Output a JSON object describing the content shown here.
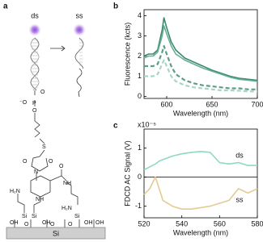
{
  "panel_a": {
    "label": "a",
    "ds": "ds",
    "ss": "ss",
    "chem_labels": [
      "O",
      "⁻O",
      "P",
      "O",
      "S",
      "O",
      "N",
      "O",
      "O",
      "NH",
      "NH",
      "H₂N",
      "H₂N",
      "Si",
      "Si",
      "Si",
      "OH",
      "OH",
      "OH",
      "OH",
      "O",
      "O",
      "O"
    ],
    "substrate": "Si"
  },
  "chart_data": [
    {
      "type": "line",
      "panel": "b",
      "xlabel": "Wavelength (nm)",
      "ylabel": "Fluorescence (kcts)",
      "xlim": [
        575,
        700
      ],
      "xticks": [
        600,
        650,
        700
      ],
      "ylim": [
        -0.1,
        4.3
      ],
      "yticks": [
        0,
        1,
        2,
        3,
        4
      ],
      "x": [
        575,
        580,
        585,
        590,
        595,
        597,
        600,
        605,
        610,
        620,
        630,
        640,
        650,
        660,
        670,
        680,
        690,
        700
      ],
      "series": [
        {
          "color": "#3b8a6f",
          "dashed": false,
          "values": [
            2.0,
            2.1,
            2.1,
            2.3,
            3.3,
            3.9,
            3.4,
            2.7,
            2.3,
            1.9,
            1.7,
            1.5,
            1.3,
            1.15,
            1.0,
            0.9,
            0.85,
            0.8
          ]
        },
        {
          "color": "#66ad92",
          "dashed": false,
          "values": [
            1.9,
            2.0,
            2.0,
            2.2,
            3.0,
            3.5,
            3.1,
            2.5,
            2.1,
            1.8,
            1.6,
            1.4,
            1.25,
            1.1,
            0.95,
            0.85,
            0.8,
            0.75
          ]
        },
        {
          "color": "#5a9f86",
          "dashed": true,
          "values": [
            1.5,
            1.5,
            1.5,
            1.6,
            2.2,
            2.5,
            2.1,
            1.5,
            1.1,
            0.8,
            0.65,
            0.55,
            0.5,
            0.45,
            0.4,
            0.4,
            0.35,
            0.35
          ]
        },
        {
          "color": "#a9d6c3",
          "dashed": true,
          "values": [
            1.0,
            1.0,
            1.0,
            1.1,
            1.6,
            1.8,
            1.5,
            1.0,
            0.75,
            0.55,
            0.45,
            0.4,
            0.35,
            0.3,
            0.3,
            0.28,
            0.25,
            0.25
          ]
        }
      ]
    },
    {
      "type": "line",
      "panel": "c",
      "xlabel": "Wavelength (nm)",
      "ylabel": "FDCD AC Signal (V)",
      "multiplier": "x10⁻⁵",
      "xlim": [
        520,
        580
      ],
      "xticks": [
        520,
        540,
        560,
        580
      ],
      "ylim": [
        -1.4,
        1.65
      ],
      "yticks": [
        -1,
        0,
        1
      ],
      "zero_line": true,
      "x": [
        520,
        523,
        526,
        528,
        530,
        535,
        540,
        545,
        550,
        555,
        560,
        565,
        570,
        575,
        580
      ],
      "series": [
        {
          "name": "ds",
          "color": "#8fd8c6",
          "dashed": false,
          "values": [
            0.25,
            0.35,
            0.45,
            0.55,
            0.6,
            0.72,
            0.8,
            0.85,
            0.88,
            0.85,
            0.5,
            0.45,
            0.5,
            0.4,
            0.4
          ]
        },
        {
          "name": "ss",
          "color": "#e3cb92",
          "dashed": false,
          "values": [
            -0.6,
            -0.4,
            0.0,
            -0.4,
            -0.8,
            -1.0,
            -1.1,
            -1.1,
            -1.05,
            -1.0,
            -0.9,
            -0.8,
            -0.4,
            -0.55,
            -0.4
          ]
        }
      ]
    }
  ]
}
